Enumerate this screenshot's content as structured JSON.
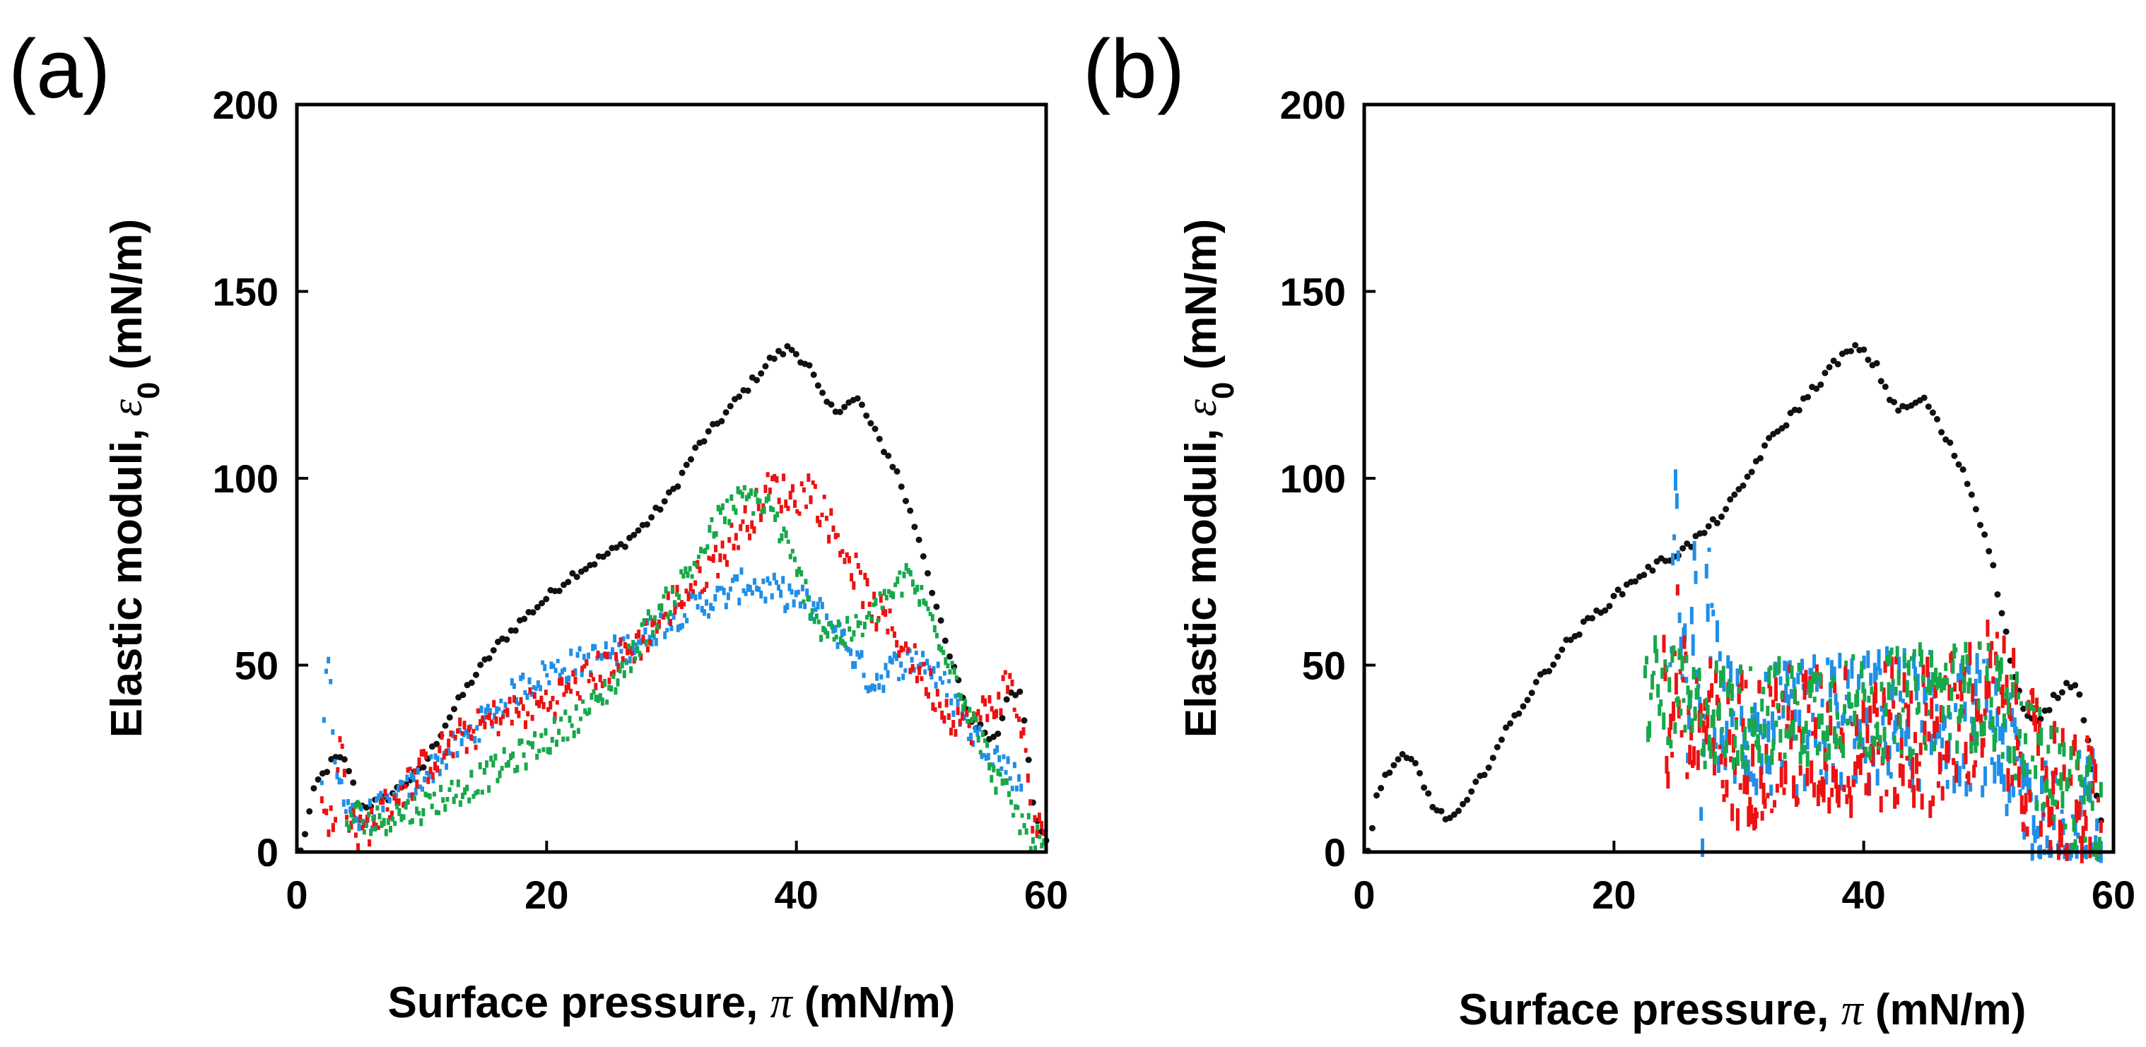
{
  "colors": {
    "black": "#111111",
    "blue": "#1f8fe8",
    "red": "#ee1111",
    "green": "#17a84a"
  },
  "chart_data": [
    {
      "panel_label": "(a)",
      "type": "scatter",
      "xlabel_text": "Surface pressure, ",
      "xlabel_symbol": "π",
      "xlabel_unit": " (mN/m)",
      "ylabel_text": "Elastic moduli, ",
      "ylabel_symbol": "ε",
      "ylabel_sub": "0",
      "ylabel_unit": " (mN/m)",
      "xlim": [
        0,
        60
      ],
      "ylim": [
        0,
        200
      ],
      "xticks": [
        0,
        20,
        40,
        60
      ],
      "yticks": [
        0,
        50,
        100,
        150,
        200
      ],
      "xtick_labels": [
        "0",
        "20",
        "40",
        "60"
      ],
      "ytick_labels": [
        "0",
        "50",
        "100",
        "150",
        "200"
      ],
      "series": [
        {
          "name": "black",
          "color": "black",
          "noise": 0,
          "x": [
            0.3,
            1.5,
            3,
            4,
            5,
            7,
            10,
            12,
            14,
            16,
            18,
            20,
            22,
            24,
            26,
            28,
            30,
            32,
            34,
            36,
            38,
            39.5,
            41,
            42,
            43,
            44,
            45,
            46,
            48,
            50,
            52,
            54,
            56,
            57,
            58,
            59,
            60
          ],
          "y": [
            0,
            18,
            25,
            24,
            12,
            14,
            22,
            35,
            46,
            55,
            62,
            68,
            74,
            78,
            82,
            88,
            96,
            108,
            116,
            124,
            132,
            135,
            130,
            122,
            118,
            120,
            121,
            114,
            102,
            82,
            55,
            35,
            30,
            44,
            42,
            12,
            2
          ]
        },
        {
          "name": "blue",
          "color": "blue",
          "noise": 4,
          "x": [
            2,
            2.5,
            3,
            4,
            5,
            6,
            8,
            10,
            12,
            14,
            16,
            18,
            20,
            22,
            24,
            26,
            28,
            30,
            32,
            34,
            36,
            38,
            40,
            42,
            44,
            46,
            48,
            50,
            52,
            54,
            56,
            57,
            58
          ],
          "y": [
            20,
            55,
            22,
            14,
            8,
            10,
            14,
            20,
            26,
            32,
            38,
            44,
            48,
            50,
            52,
            54,
            58,
            63,
            66,
            68,
            72,
            70,
            68,
            64,
            56,
            45,
            50,
            52,
            44,
            32,
            26,
            22,
            18
          ]
        },
        {
          "name": "red",
          "color": "red",
          "noise": 5,
          "x": [
            2,
            3,
            3.5,
            4,
            5,
            6,
            8,
            10,
            12,
            14,
            16,
            18,
            20,
            22,
            24,
            26,
            28,
            30,
            32,
            34,
            36,
            38,
            40,
            41,
            42,
            44,
            46,
            48,
            50,
            52,
            54,
            56,
            57,
            58,
            59,
            60
          ],
          "y": [
            15,
            5,
            32,
            12,
            4,
            8,
            15,
            22,
            28,
            32,
            36,
            38,
            40,
            44,
            48,
            52,
            58,
            66,
            72,
            80,
            88,
            98,
            94,
            98,
            92,
            80,
            66,
            58,
            48,
            38,
            34,
            40,
            46,
            34,
            8,
            2
          ]
        },
        {
          "name": "green",
          "color": "green",
          "noise": 4,
          "x": [
            4,
            5,
            6,
            8,
            10,
            12,
            14,
            16,
            18,
            20,
            22,
            24,
            26,
            28,
            30,
            32,
            34,
            36,
            38,
            40,
            42,
            44,
            46,
            47,
            48,
            49,
            50,
            52,
            54,
            56,
            58,
            59,
            60
          ],
          "y": [
            8,
            10,
            8,
            10,
            12,
            15,
            18,
            22,
            26,
            30,
            35,
            40,
            48,
            60,
            68,
            78,
            90,
            95,
            92,
            75,
            60,
            58,
            62,
            68,
            70,
            74,
            68,
            54,
            36,
            20,
            8,
            4,
            1
          ]
        }
      ]
    },
    {
      "panel_label": "(b)",
      "type": "scatter",
      "xlabel_text": "Surface pressure, ",
      "xlabel_symbol": "π",
      "xlabel_unit": " (mN/m)",
      "ylabel_text": "Elastic moduli, ",
      "ylabel_symbol": "ε",
      "ylabel_sub": "0",
      "ylabel_unit": " (mN/m)",
      "xlim": [
        0,
        60
      ],
      "ylim": [
        0,
        200
      ],
      "xticks": [
        0,
        20,
        40,
        60
      ],
      "yticks": [
        0,
        50,
        100,
        150,
        200
      ],
      "xtick_labels": [
        "0",
        "20",
        "40",
        "60"
      ],
      "ytick_labels": [
        "0",
        "50",
        "100",
        "150",
        "200"
      ],
      "series": [
        {
          "name": "black",
          "color": "black",
          "noise": 0,
          "x": [
            0.3,
            1,
            2,
            3,
            4,
            5,
            6,
            7,
            8,
            10,
            12,
            14,
            16,
            18,
            20,
            22,
            24,
            26,
            28,
            30,
            32,
            34,
            36,
            38,
            39.5,
            41,
            42,
            43,
            44,
            45,
            46,
            48,
            50,
            51,
            52,
            53,
            54,
            55,
            56,
            57,
            58,
            59
          ],
          "y": [
            0,
            15,
            22,
            25,
            24,
            16,
            10,
            9,
            12,
            24,
            36,
            46,
            55,
            62,
            68,
            74,
            78,
            82,
            88,
            96,
            108,
            116,
            124,
            132,
            135,
            130,
            122,
            118,
            120,
            121,
            114,
            102,
            82,
            65,
            48,
            36,
            34,
            40,
            44,
            46,
            30,
            8
          ]
        },
        {
          "name": "blue",
          "color": "blue",
          "noise": 18,
          "x": [
            24.5,
            25,
            25.5,
            26,
            26.5,
            27,
            27.5,
            28,
            29,
            30,
            32,
            34,
            36,
            38,
            40,
            42,
            44,
            46,
            48,
            50,
            51,
            52,
            53,
            54,
            55,
            56,
            57,
            58,
            59
          ],
          "y": [
            40,
            90,
            60,
            20,
            80,
            5,
            70,
            45,
            35,
            35,
            32,
            32,
            34,
            36,
            34,
            36,
            35,
            36,
            34,
            34,
            30,
            22,
            15,
            8,
            5,
            2,
            8,
            12,
            5
          ]
        },
        {
          "name": "red",
          "color": "red",
          "noise": 20,
          "x": [
            24,
            24.5,
            25,
            25.5,
            26,
            27,
            28,
            29,
            30,
            32,
            34,
            36,
            38,
            40,
            42,
            44,
            46,
            48,
            50,
            51,
            52,
            53,
            54,
            55,
            56,
            57,
            58,
            59
          ],
          "y": [
            55,
            20,
            60,
            40,
            30,
            35,
            30,
            25,
            28,
            28,
            30,
            30,
            30,
            30,
            32,
            30,
            32,
            35,
            42,
            40,
            32,
            25,
            20,
            18,
            15,
            10,
            12,
            5
          ]
        },
        {
          "name": "green",
          "color": "green",
          "noise": 14,
          "x": [
            22.5,
            23,
            24,
            25,
            26,
            27,
            28,
            29,
            30,
            32,
            34,
            36,
            38,
            40,
            42,
            44,
            46,
            48,
            50,
            51,
            52,
            53,
            54,
            55,
            56,
            57,
            58,
            59
          ],
          "y": [
            40,
            45,
            42,
            40,
            38,
            36,
            38,
            36,
            36,
            38,
            36,
            38,
            40,
            38,
            40,
            40,
            42,
            42,
            42,
            40,
            34,
            30,
            25,
            22,
            18,
            14,
            10,
            6
          ]
        }
      ]
    }
  ]
}
